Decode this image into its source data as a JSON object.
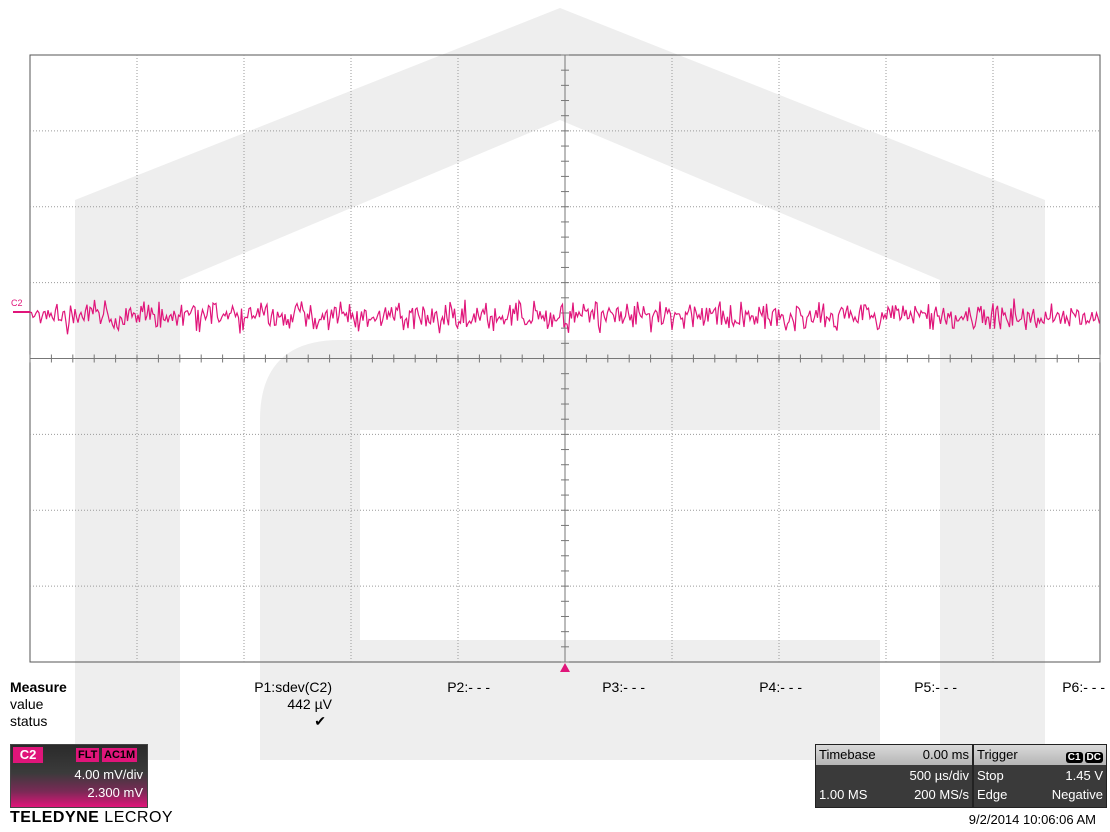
{
  "channel_marker": "C2",
  "measure": {
    "title": "Measure",
    "row_labels": [
      "value",
      "status"
    ],
    "params": [
      {
        "name": "P1:sdev(C2)",
        "value": "442 µV",
        "status": "✔"
      },
      {
        "name": "P2:- - -",
        "value": "",
        "status": ""
      },
      {
        "name": "P3:- - -",
        "value": "",
        "status": ""
      },
      {
        "name": "P4:- - -",
        "value": "",
        "status": ""
      },
      {
        "name": "P5:- - -",
        "value": "",
        "status": ""
      },
      {
        "name": "P6:- - -",
        "value": "",
        "status": ""
      }
    ]
  },
  "channel": {
    "label": "C2",
    "badges": [
      "FLT",
      "AC1M"
    ],
    "vdiv": "4.00 mV/div",
    "offset": "2.300 mV"
  },
  "brand": {
    "bold": "TELEDYNE",
    "light": " LECROY"
  },
  "timebase": {
    "label": "Timebase",
    "delay": "0.00 ms",
    "per_div": "500 µs/div",
    "samples": "1.00 MS",
    "rate": "200 MS/s"
  },
  "trigger": {
    "label": "Trigger",
    "source_tags": [
      "C1",
      "DC"
    ],
    "mode": "Stop",
    "level": "1.45 V",
    "type": "Edge",
    "slope": "Negative"
  },
  "timestamp": "9/2/2014 10:06:06 AM",
  "colors": {
    "trace": "#e0157a",
    "grid": "#9a9a9a",
    "logo": "#eeeeee"
  },
  "chart_data": {
    "type": "line",
    "description_series": "C2",
    "xlim_div": [
      0,
      10
    ],
    "ylim_div": [
      -4,
      4
    ],
    "trace_center_div": 0.55,
    "noise_sdev_uV": 442,
    "volts_per_div_mV": 4.0
  }
}
